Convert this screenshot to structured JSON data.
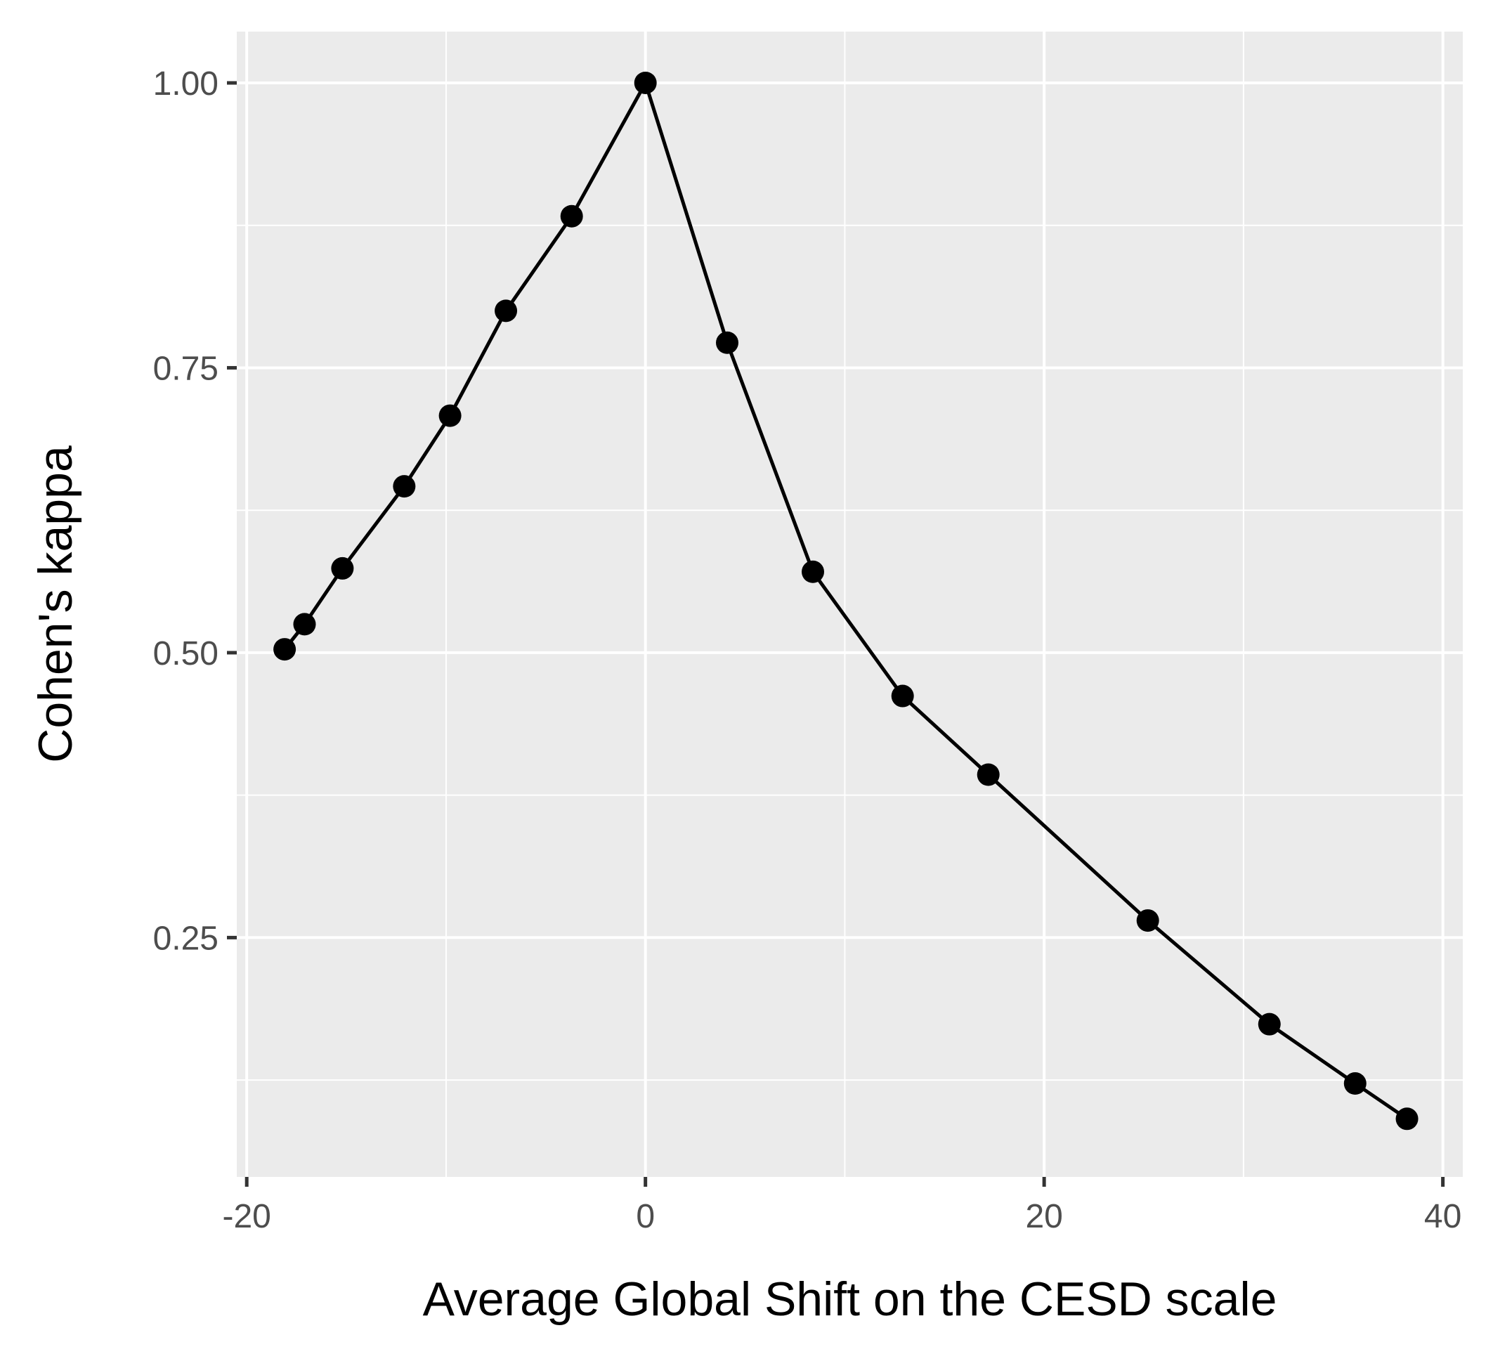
{
  "chart_data": {
    "type": "line",
    "xlabel": "Average Global Shift on the CESD scale",
    "ylabel": "Cohen's kappa",
    "xlim": [
      -20.5,
      41
    ],
    "ylim": [
      0.04,
      1.045
    ],
    "x_ticks": [
      -20,
      0,
      20,
      40
    ],
    "x_tick_labels": [
      "-20",
      "0",
      "20",
      "40"
    ],
    "y_ticks": [
      0.25,
      0.5,
      0.75,
      1.0
    ],
    "y_tick_labels": [
      "0.25",
      "0.50",
      "0.75",
      "1.00"
    ],
    "grid": true,
    "legend": "none",
    "series": [
      {
        "x": [
          -18.1,
          -17.1,
          -15.2,
          -12.1,
          -9.8,
          -7.0,
          -3.7,
          0.0,
          4.1,
          8.4,
          12.9,
          17.2,
          25.2,
          31.3,
          35.6,
          38.2
        ],
        "y": [
          0.503,
          0.525,
          0.574,
          0.646,
          0.708,
          0.8,
          0.883,
          1.0,
          0.772,
          0.571,
          0.462,
          0.393,
          0.265,
          0.174,
          0.122,
          0.091
        ]
      }
    ],
    "colors": {
      "panel": "#ebebeb",
      "grid": "#ffffff",
      "line": "#000000",
      "point": "#000000",
      "tick_mark": "#333333"
    }
  }
}
